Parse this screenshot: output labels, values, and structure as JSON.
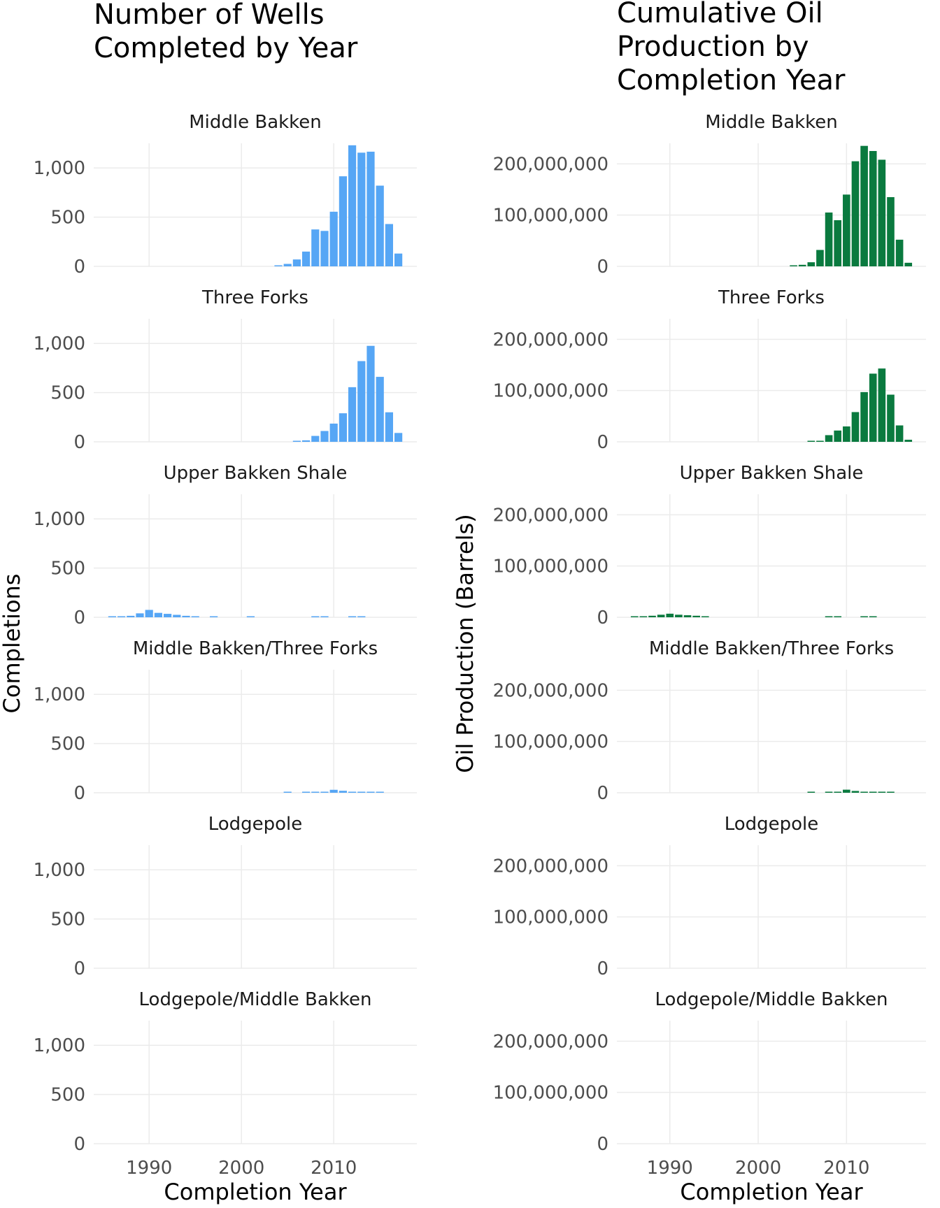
{
  "chart_data": [
    {
      "type": "bar",
      "title_lines": [
        "Number of Wells",
        "Completed by Year"
      ],
      "xlabel": "Completion Year",
      "ylabel": "Completions",
      "xlim": [
        1984,
        2019
      ],
      "ylim": [
        0,
        1250
      ],
      "y_ticks": [
        0,
        500,
        1000
      ],
      "y_tick_labels": [
        "0",
        "500",
        "1,000"
      ],
      "x_ticks": [
        1990,
        2000,
        2010
      ],
      "x_tick_labels": [
        "1990",
        "2000",
        "2010"
      ],
      "bar_color": "#56A6F5",
      "grid": true,
      "facets": [
        {
          "label": "Middle Bakken",
          "x": [
            2004,
            2005,
            2006,
            2007,
            2008,
            2009,
            2010,
            2011,
            2012,
            2013,
            2014,
            2015,
            2016,
            2017
          ],
          "values": [
            5,
            25,
            70,
            150,
            375,
            360,
            555,
            915,
            1230,
            1155,
            1165,
            820,
            430,
            130
          ]
        },
        {
          "label": "Three Forks",
          "x": [
            2006,
            2007,
            2008,
            2009,
            2010,
            2011,
            2012,
            2013,
            2014,
            2015,
            2016,
            2017
          ],
          "values": [
            5,
            15,
            60,
            110,
            185,
            290,
            555,
            820,
            975,
            660,
            300,
            90
          ]
        },
        {
          "label": "Upper Bakken Shale",
          "x": [
            1986,
            1987,
            1988,
            1989,
            1990,
            1991,
            1992,
            1993,
            1994,
            1995,
            1997,
            2001,
            2008,
            2009,
            2012,
            2013
          ],
          "values": [
            5,
            8,
            15,
            40,
            75,
            45,
            35,
            25,
            15,
            5,
            5,
            5,
            5,
            5,
            5,
            5
          ]
        },
        {
          "label": "Middle Bakken/Three Forks",
          "x": [
            2005,
            2007,
            2008,
            2009,
            2010,
            2011,
            2012,
            2013,
            2014,
            2015
          ],
          "values": [
            5,
            5,
            5,
            10,
            30,
            20,
            8,
            5,
            5,
            5
          ]
        },
        {
          "label": "Lodgepole",
          "x": [],
          "values": []
        },
        {
          "label": "Lodgepole/Middle Bakken",
          "x": [],
          "values": []
        }
      ]
    },
    {
      "type": "bar",
      "title_lines": [
        "Cumulative Oil",
        "Production by",
        "Completion Year"
      ],
      "xlabel": "Completion Year",
      "ylabel": "Oil Production (Barrels)",
      "xlim": [
        1984,
        2019
      ],
      "ylim": [
        0,
        240000000
      ],
      "y_ticks": [
        0,
        100000000,
        200000000
      ],
      "y_tick_labels": [
        "0",
        "100,000,000",
        "200,000,000"
      ],
      "x_ticks": [
        1990,
        2000,
        2010
      ],
      "x_tick_labels": [
        "1990",
        "2000",
        "2010"
      ],
      "bar_color": "#0A7A3F",
      "grid": true,
      "facets": [
        {
          "label": "Middle Bakken",
          "x": [
            2004,
            2005,
            2006,
            2007,
            2008,
            2009,
            2010,
            2011,
            2012,
            2013,
            2014,
            2015,
            2016,
            2017
          ],
          "values": [
            1000000,
            3000000,
            8000000,
            32000000,
            105000000,
            90000000,
            140000000,
            205000000,
            235000000,
            225000000,
            208000000,
            135000000,
            52000000,
            7000000
          ]
        },
        {
          "label": "Three Forks",
          "x": [
            2006,
            2007,
            2008,
            2009,
            2010,
            2011,
            2012,
            2013,
            2014,
            2015,
            2016,
            2017
          ],
          "values": [
            2000000,
            2000000,
            13000000,
            22000000,
            30000000,
            58000000,
            97000000,
            133000000,
            143000000,
            92000000,
            32000000,
            4000000
          ]
        },
        {
          "label": "Upper Bakken Shale",
          "x": [
            1986,
            1987,
            1988,
            1989,
            1990,
            1991,
            1992,
            1993,
            1994,
            2008,
            2009,
            2012,
            2013
          ],
          "values": [
            1000000,
            2000000,
            3000000,
            5000000,
            7000000,
            5000000,
            4000000,
            3000000,
            1500000,
            1000000,
            1000000,
            1000000,
            1000000
          ]
        },
        {
          "label": "Middle Bakken/Three Forks",
          "x": [
            2006,
            2008,
            2009,
            2010,
            2011,
            2012,
            2013,
            2014,
            2015
          ],
          "values": [
            1000000,
            1000000,
            1500000,
            6000000,
            3500000,
            1500000,
            1000000,
            1000000,
            1000000
          ]
        },
        {
          "label": "Lodgepole",
          "x": [],
          "values": []
        },
        {
          "label": "Lodgepole/Middle Bakken",
          "x": [],
          "values": []
        }
      ]
    }
  ]
}
